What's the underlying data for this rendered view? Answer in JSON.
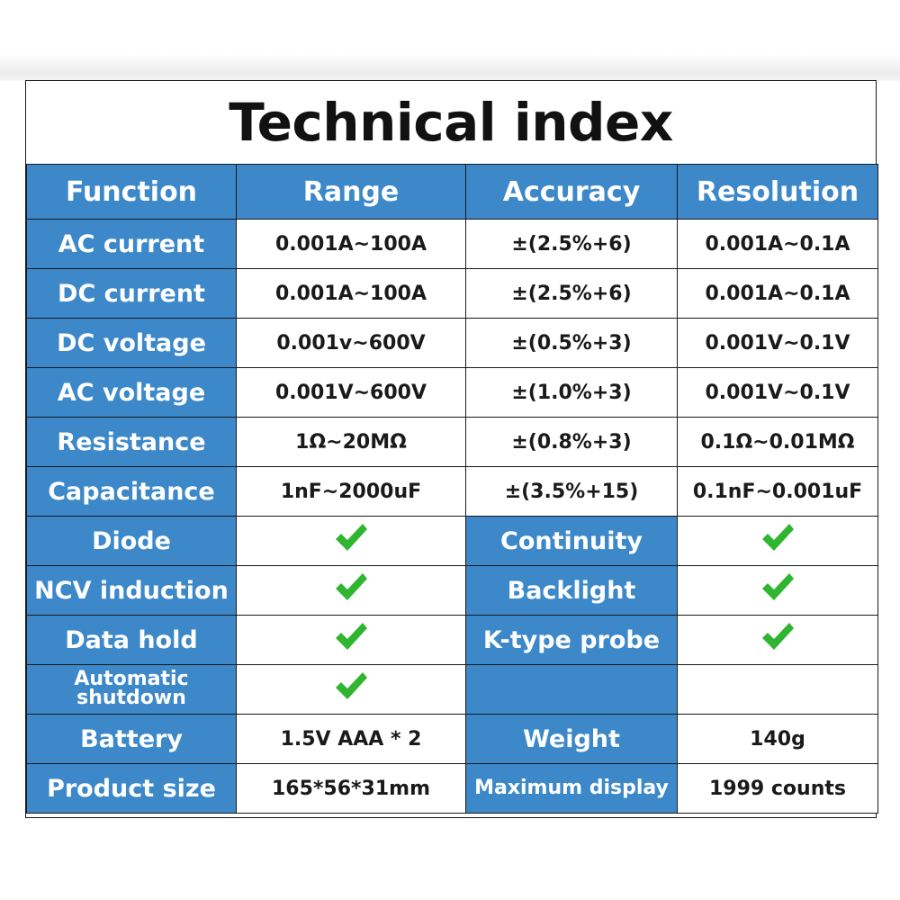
{
  "title": "Technical index",
  "headers": [
    "Function",
    "Range",
    "Accuracy",
    "Resolution"
  ],
  "measurements": [
    {
      "function": "AC current",
      "range": "0.001A~100A",
      "accuracy": "±(2.5%+6)",
      "resolution": "0.001A~0.1A"
    },
    {
      "function": "DC current",
      "range": "0.001A~100A",
      "accuracy": "±(2.5%+6)",
      "resolution": "0.001A~0.1A"
    },
    {
      "function": "DC voltage",
      "range": "0.001v~600V",
      "accuracy": "±(0.5%+3)",
      "resolution": "0.001V~0.1V"
    },
    {
      "function": "AC voltage",
      "range": "0.001V~600V",
      "accuracy": "±(1.0%+3)",
      "resolution": "0.001V~0.1V"
    },
    {
      "function": "Resistance",
      "range": "1Ω~20MΩ",
      "accuracy": "±(0.8%+3)",
      "resolution": "0.1Ω~0.01MΩ"
    },
    {
      "function": "Capacitance",
      "range": "1nF~2000uF",
      "accuracy": "±(3.5%+15)",
      "resolution": "0.1nF~0.001uF"
    }
  ],
  "features": [
    {
      "left": "Diode",
      "left_supported": true,
      "right": "Continuity",
      "right_supported": true
    },
    {
      "left": "NCV induction",
      "left_supported": true,
      "right": "Backlight",
      "right_supported": true
    },
    {
      "left": "Data hold",
      "left_supported": true,
      "right": "K-type probe",
      "right_supported": true
    },
    {
      "left": "Automatic shutdown",
      "left_supported": true,
      "right": "",
      "right_supported": false
    }
  ],
  "specs": [
    {
      "label1": "Battery",
      "value1": "1.5V AAA * 2",
      "label2": "Weight",
      "value2": "140g"
    },
    {
      "label1": "Product size",
      "value1": "165*56*31mm",
      "label2": "Maximum display",
      "value2": "1999 counts"
    }
  ],
  "colors": {
    "header_blue": "#3c88c9",
    "check_green": "#2fb52f",
    "text_dark": "#1a1a1a"
  },
  "icons": {
    "supported": "check-icon"
  }
}
